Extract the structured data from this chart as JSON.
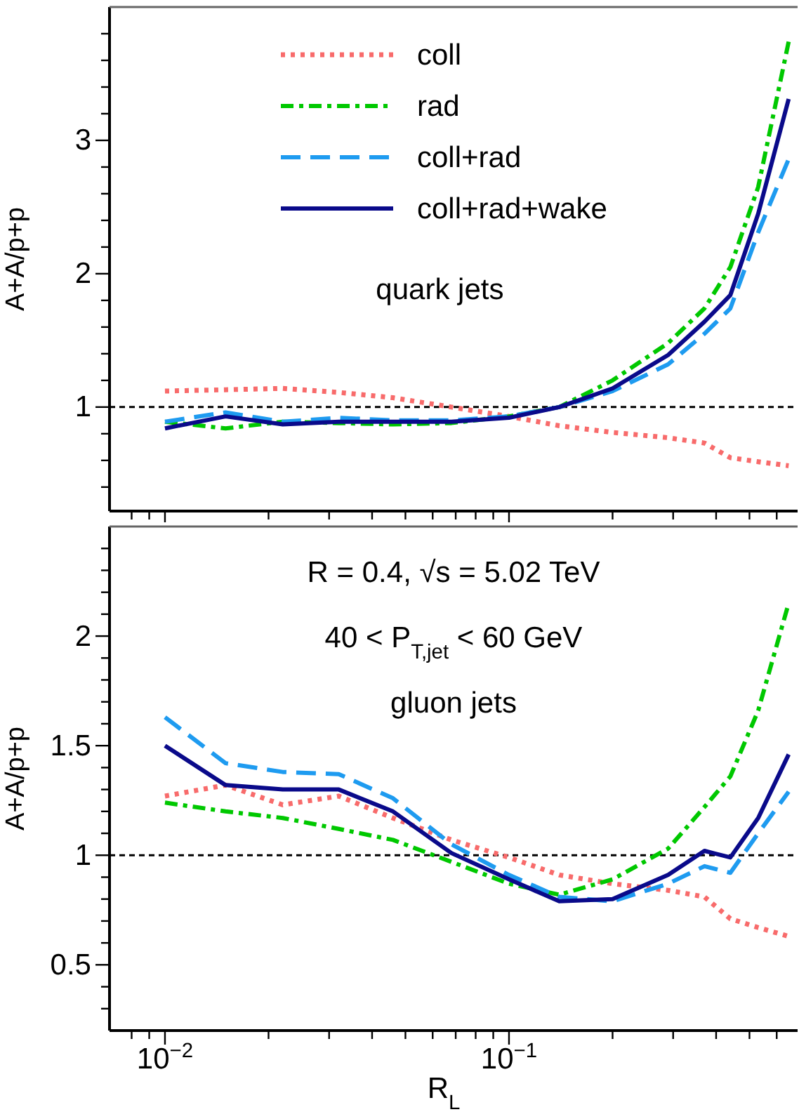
{
  "chart_data": [
    {
      "type": "line",
      "ylabel": "A+A/p+p",
      "annotations": [
        "quark jets"
      ],
      "log": "x",
      "legend": "top",
      "tick_labels": "y",
      "xlim": [
        0.0069,
        0.69
      ],
      "ylim": [
        0.22,
        4.0
      ],
      "xticks": [
        {
          "value": 0.008,
          "label": null
        },
        {
          "value": 0.009,
          "label": null
        },
        {
          "value": 0.01,
          "label": null
        },
        {
          "value": 0.02,
          "label": null
        },
        {
          "value": 0.03,
          "label": null
        },
        {
          "value": 0.04,
          "label": null
        },
        {
          "value": 0.05,
          "label": null
        },
        {
          "value": 0.06,
          "label": null
        },
        {
          "value": 0.07,
          "label": null
        },
        {
          "value": 0.08,
          "label": null
        },
        {
          "value": 0.09,
          "label": null
        },
        {
          "value": 0.1,
          "label": null
        },
        {
          "value": 0.2,
          "label": null
        },
        {
          "value": 0.3,
          "label": null
        },
        {
          "value": 0.4,
          "label": null
        },
        {
          "value": 0.5,
          "label": null
        },
        {
          "value": 0.6,
          "label": null
        }
      ],
      "yticks": [
        {
          "value": 0.4,
          "label": null
        },
        {
          "value": 0.6,
          "label": null
        },
        {
          "value": 0.8,
          "label": null
        },
        1,
        {
          "value": 1.2,
          "label": null
        },
        {
          "value": 1.4,
          "label": null
        },
        {
          "value": 1.6,
          "label": null
        },
        {
          "value": 1.8,
          "label": null
        },
        2,
        {
          "value": 2.2,
          "label": null
        },
        {
          "value": 2.4,
          "label": null
        },
        {
          "value": 2.6,
          "label": null
        },
        {
          "value": 2.8,
          "label": null
        },
        3,
        {
          "value": 3.2,
          "label": null
        },
        {
          "value": 3.4,
          "label": null
        },
        {
          "value": 3.6,
          "label": null
        },
        {
          "value": 3.8,
          "label": null
        }
      ],
      "ref_lines": [
        {
          "axis": "y",
          "value": 1,
          "label": null,
          "color": "#000000",
          "line_style": "dotted"
        }
      ],
      "x": [
        0.01,
        0.015,
        0.022,
        0.032,
        0.046,
        0.068,
        0.1,
        0.14,
        0.2,
        0.29,
        0.37,
        0.44,
        0.53,
        0.65
      ],
      "series": [
        {
          "name": "coll",
          "color": "#f86b6b",
          "line_style": "dotted",
          "values": [
            1.12,
            1.13,
            1.14,
            1.11,
            1.07,
            1.0,
            0.93,
            0.86,
            0.81,
            0.77,
            0.73,
            0.62,
            0.59,
            0.56
          ]
        },
        {
          "name": "rad",
          "color": "#00c800",
          "line_style": "dashdot",
          "values": [
            0.89,
            0.84,
            0.89,
            0.88,
            0.87,
            0.88,
            0.93,
            1.0,
            1.2,
            1.48,
            1.74,
            2.05,
            2.65,
            3.74
          ]
        },
        {
          "name": "coll+rad",
          "color": "#1e9bf0",
          "line_style": "dashed",
          "values": [
            0.89,
            0.96,
            0.89,
            0.92,
            0.9,
            0.9,
            0.93,
            1.0,
            1.12,
            1.32,
            1.55,
            1.74,
            2.31,
            2.86
          ]
        },
        {
          "name": "coll+rad+wake",
          "color": "#0a0a8a",
          "line_style": "solid",
          "values": [
            0.84,
            0.93,
            0.87,
            0.89,
            0.89,
            0.89,
            0.92,
            1.0,
            1.14,
            1.39,
            1.64,
            1.84,
            2.45,
            3.31
          ]
        }
      ]
    },
    {
      "type": "line",
      "xlabel": "R$_{L}$",
      "ylabel": "A+A/p+p",
      "annotations": [
        "R = 0.4, √s = 5.02 TeV",
        "40 < P$_{T,jet}$ < 60 GeV",
        "gluon jets"
      ],
      "log": "x",
      "legend": false,
      "xlim": [
        0.0069,
        0.69
      ],
      "ylim": [
        0.2,
        2.5
      ],
      "xticks": [
        {
          "value": 0.008,
          "label": null
        },
        {
          "value": 0.009,
          "label": null
        },
        {
          "value": 0.01,
          "label": "10$^{−2}$"
        },
        {
          "value": 0.02,
          "label": null
        },
        {
          "value": 0.03,
          "label": null
        },
        {
          "value": 0.04,
          "label": null
        },
        {
          "value": 0.05,
          "label": null
        },
        {
          "value": 0.06,
          "label": null
        },
        {
          "value": 0.07,
          "label": null
        },
        {
          "value": 0.08,
          "label": null
        },
        {
          "value": 0.09,
          "label": null
        },
        {
          "value": 0.1,
          "label": "10$^{−1}$"
        },
        {
          "value": 0.2,
          "label": null
        },
        {
          "value": 0.3,
          "label": null
        },
        {
          "value": 0.4,
          "label": null
        },
        {
          "value": 0.5,
          "label": null
        },
        {
          "value": 0.6,
          "label": null
        }
      ],
      "yticks": [
        {
          "value": 0.3,
          "label": null
        },
        {
          "value": 0.4,
          "label": null
        },
        0.5,
        {
          "value": 0.6,
          "label": null
        },
        {
          "value": 0.7,
          "label": null
        },
        {
          "value": 0.8,
          "label": null
        },
        {
          "value": 0.9,
          "label": null
        },
        1,
        {
          "value": 1.1,
          "label": null
        },
        {
          "value": 1.2,
          "label": null
        },
        {
          "value": 1.3,
          "label": null
        },
        {
          "value": 1.4,
          "label": null
        },
        1.5,
        {
          "value": 1.6,
          "label": null
        },
        {
          "value": 1.7,
          "label": null
        },
        {
          "value": 1.8,
          "label": null
        },
        {
          "value": 1.9,
          "label": null
        },
        2,
        {
          "value": 2.1,
          "label": null
        },
        {
          "value": 2.2,
          "label": null
        },
        {
          "value": 2.3,
          "label": null
        },
        {
          "value": 2.4,
          "label": null
        }
      ],
      "ref_lines": [
        {
          "axis": "y",
          "value": 1,
          "label": null,
          "color": "#000000",
          "line_style": "dotted"
        }
      ],
      "x": [
        0.01,
        0.015,
        0.022,
        0.032,
        0.046,
        0.068,
        0.1,
        0.14,
        0.2,
        0.29,
        0.37,
        0.44,
        0.53,
        0.65
      ],
      "series": [
        {
          "color": "#f86b6b",
          "line_style": "dotted",
          "values": [
            1.27,
            1.32,
            1.23,
            1.27,
            1.17,
            1.07,
            0.99,
            0.91,
            0.87,
            0.84,
            0.81,
            0.71,
            0.67,
            0.63
          ]
        },
        {
          "color": "#00c800",
          "line_style": "dashdot",
          "values": [
            1.24,
            1.2,
            1.17,
            1.12,
            1.07,
            0.97,
            0.87,
            0.82,
            0.89,
            1.03,
            1.22,
            1.36,
            1.66,
            2.15
          ]
        },
        {
          "color": "#1e9bf0",
          "line_style": "dashed",
          "values": [
            1.63,
            1.42,
            1.38,
            1.37,
            1.26,
            1.05,
            0.91,
            0.81,
            0.79,
            0.87,
            0.95,
            0.92,
            1.1,
            1.29
          ]
        },
        {
          "color": "#0a0a8a",
          "line_style": "solid",
          "values": [
            1.5,
            1.32,
            1.3,
            1.3,
            1.2,
            1.01,
            0.89,
            0.79,
            0.8,
            0.91,
            1.02,
            0.99,
            1.17,
            1.46
          ]
        }
      ]
    }
  ]
}
